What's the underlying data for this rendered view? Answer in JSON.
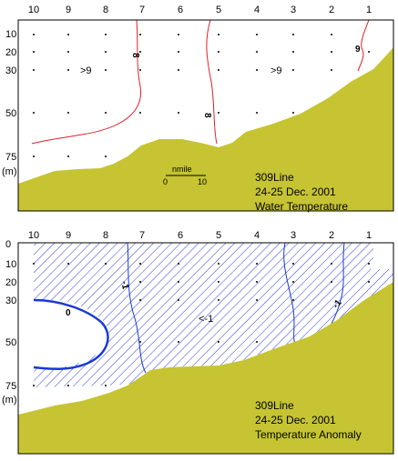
{
  "stations": [
    "10",
    "9",
    "8",
    "7",
    "6",
    "5",
    "4",
    "3",
    "2",
    "1"
  ],
  "depths": [
    "0",
    "10",
    "20",
    "30",
    "50",
    "75"
  ],
  "depth_unit": "(m)",
  "colors": {
    "land": "#c6c432",
    "temp_contour": "#e0202a",
    "anomaly_line": "#1a38d6",
    "hatch": "#2a3fd6",
    "frame": "#000000"
  },
  "top_panel": {
    "caption": [
      "309Line",
      "24-25 Dec. 2001",
      "Water Temperature"
    ],
    "contour_labels": [
      "8",
      "8",
      "9"
    ],
    "region_labels": [
      ">9",
      ">9"
    ],
    "scale_bar": {
      "unit": "nmile",
      "start": "0",
      "end": "10"
    }
  },
  "bottom_panel": {
    "caption": [
      "309Line",
      "24-25 Dec. 2001",
      "Temperature Anomaly"
    ],
    "contour_labels": [
      "0",
      "-1",
      "-1"
    ],
    "region_labels": [
      "<-1"
    ]
  }
}
